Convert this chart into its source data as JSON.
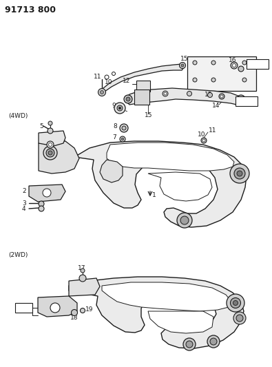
{
  "title": "91713 800",
  "bg": "#ffffff",
  "fg": "#1a1a1a",
  "gray_light": "#cccccc",
  "gray_mid": "#999999",
  "gray_dark": "#666666",
  "figsize": [
    3.95,
    5.33
  ],
  "dpi": 100,
  "lw_main": 1.0,
  "lw_thin": 0.6,
  "label_4wd": "(4WD)",
  "label_2wd": "(2WD)",
  "title_fs": 9,
  "label_fs": 6.5
}
